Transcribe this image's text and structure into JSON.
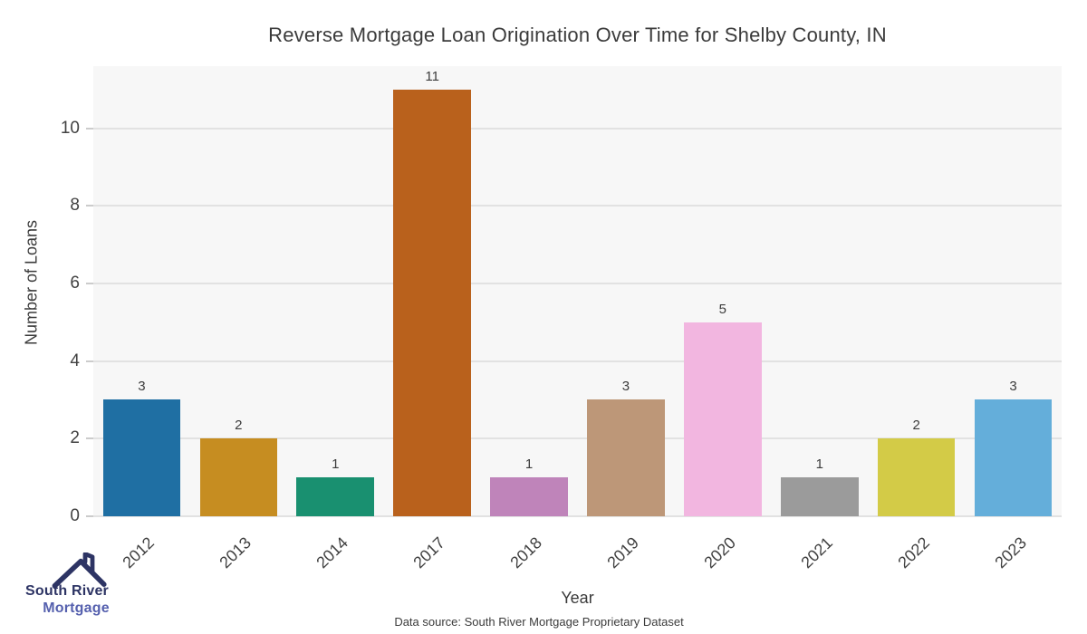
{
  "chart_data": {
    "type": "bar",
    "title": "Reverse Mortgage Loan Origination Over Time for Shelby County, IN",
    "xlabel": "Year",
    "ylabel": "Number of Loans",
    "source_note": "Data source: South River Mortgage Proprietary Dataset",
    "categories": [
      "2012",
      "2013",
      "2014",
      "2017",
      "2018",
      "2019",
      "2020",
      "2021",
      "2022",
      "2023"
    ],
    "values": [
      3,
      2,
      1,
      11,
      1,
      3,
      5,
      1,
      2,
      3
    ],
    "bar_colors": [
      "#1f6fa3",
      "#c68d21",
      "#199070",
      "#b9611c",
      "#bf84ba",
      "#bd9778",
      "#f2b6e0",
      "#9b9b9b",
      "#d3cb47",
      "#64aeda"
    ],
    "y_ticks": [
      0,
      2,
      4,
      6,
      8,
      10
    ],
    "ylim": [
      0,
      11.6
    ],
    "grid": true,
    "legend": false,
    "bar_value_labels": true,
    "plot_background": "#f7f7f7",
    "gridline_color": "#e2e2e2"
  },
  "logo": {
    "line1": "South River",
    "line2": "Mortgage",
    "color_primary": "#2d3464",
    "color_secondary": "#5560ae"
  }
}
